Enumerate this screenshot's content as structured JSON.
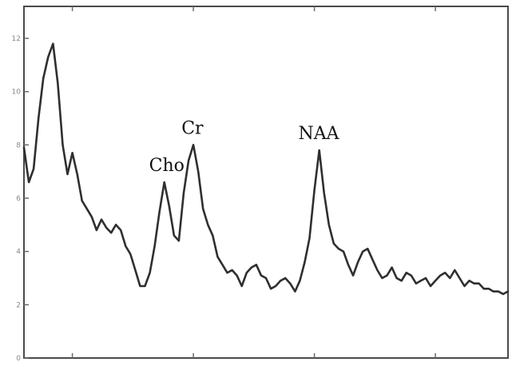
{
  "chart_data": {
    "type": "line",
    "title": "",
    "xlabel": "",
    "ylabel": "",
    "xlim": [
      0,
      100
    ],
    "ylim": [
      0,
      13.2
    ],
    "grid": false,
    "y_ticks": [
      0,
      2,
      4,
      6,
      8,
      10,
      12
    ],
    "y_tick_labels": [
      "0",
      "2",
      "4",
      "6",
      "8",
      "10",
      "12"
    ],
    "x_ticks": [
      10,
      35,
      60,
      85
    ],
    "series": [
      {
        "color": "#2f2f2f",
        "x": [
          0,
          1,
          2,
          3,
          4,
          5,
          6,
          7,
          8,
          9,
          10,
          11,
          12,
          13,
          14,
          15,
          16,
          17,
          18,
          19,
          20,
          21,
          22,
          23,
          24,
          25,
          26,
          27,
          28,
          29,
          30,
          31,
          32,
          33,
          34,
          35,
          36,
          37,
          38,
          39,
          40,
          41,
          42,
          43,
          44,
          45,
          46,
          47,
          48,
          49,
          50,
          51,
          52,
          53,
          54,
          55,
          56,
          57,
          58,
          59,
          60,
          61,
          62,
          63,
          64,
          65,
          66,
          67,
          68,
          69,
          70,
          71,
          72,
          73,
          74,
          75,
          76,
          77,
          78,
          79,
          80,
          81,
          82,
          83,
          84,
          85,
          86,
          87,
          88,
          89,
          90,
          91,
          92,
          93,
          94,
          95,
          96,
          97,
          98,
          99,
          100
        ],
        "y": [
          7.9,
          6.6,
          7.1,
          9.0,
          10.5,
          11.3,
          11.8,
          10.3,
          8.0,
          6.9,
          7.7,
          6.9,
          5.9,
          5.6,
          5.3,
          4.8,
          5.2,
          4.9,
          4.7,
          5.0,
          4.8,
          4.2,
          3.9,
          3.3,
          2.7,
          2.7,
          3.2,
          4.2,
          5.5,
          6.6,
          5.7,
          4.6,
          4.4,
          6.2,
          7.4,
          8.0,
          7.0,
          5.6,
          5.0,
          4.6,
          3.8,
          3.5,
          3.2,
          3.3,
          3.1,
          2.7,
          3.2,
          3.4,
          3.5,
          3.1,
          3.0,
          2.6,
          2.7,
          2.9,
          3.0,
          2.8,
          2.5,
          2.9,
          3.6,
          4.5,
          6.3,
          7.8,
          6.2,
          5.0,
          4.3,
          4.1,
          4.0,
          3.5,
          3.1,
          3.6,
          4.0,
          4.1,
          3.7,
          3.3,
          3.0,
          3.1,
          3.4,
          3.0,
          2.9,
          3.2,
          3.1,
          2.8,
          2.9,
          3.0,
          2.7,
          2.9,
          3.1,
          3.2,
          3.0,
          3.3,
          3.0,
          2.7,
          2.9,
          2.8,
          2.8,
          2.6,
          2.6,
          2.5,
          2.5,
          2.4,
          2.5
        ]
      }
    ],
    "annotations": [
      {
        "text": "Cho",
        "x": 29.5,
        "y": 6.6
      },
      {
        "text": "Cr",
        "x": 34.8,
        "y": 8.0
      },
      {
        "text": "NAA",
        "x": 60.9,
        "y": 7.8
      }
    ]
  }
}
